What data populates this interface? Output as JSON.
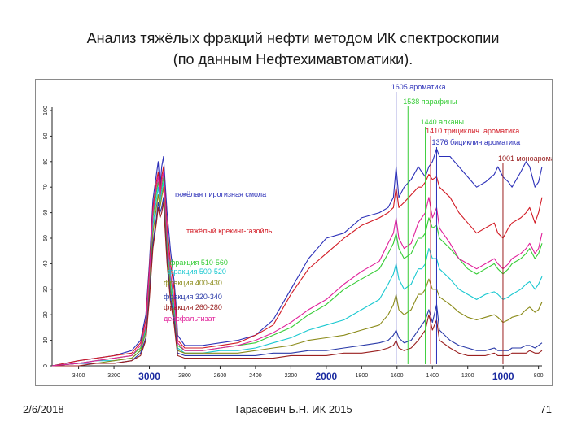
{
  "title": {
    "line1": "Анализ тяжёлых фракций нефти методом ИК спектроскопии",
    "line2": "(по данным Нефтехимавтоматики)."
  },
  "footer": {
    "date": "2/6/2018",
    "author": "Тарасевич Б.Н. ИК 2015",
    "page": "71"
  },
  "chart_data": {
    "type": "line",
    "title": "",
    "xlabel": "",
    "ylabel": "",
    "xlim": [
      3550,
      780
    ],
    "ylim": [
      0,
      100
    ],
    "grid": false,
    "x_ticks": [
      {
        "value": 3400,
        "label": "3400",
        "big": false
      },
      {
        "value": 3200,
        "label": "3200",
        "big": false
      },
      {
        "value": 3000,
        "label": "3000",
        "big": true
      },
      {
        "value": 2800,
        "label": "2800",
        "big": false
      },
      {
        "value": 2600,
        "label": "2600",
        "big": false
      },
      {
        "value": 2400,
        "label": "2400",
        "big": false
      },
      {
        "value": 2200,
        "label": "2200",
        "big": false
      },
      {
        "value": 2000,
        "label": "2000",
        "big": true
      },
      {
        "value": 1800,
        "label": "1800",
        "big": false
      },
      {
        "value": 1600,
        "label": "1600",
        "big": false
      },
      {
        "value": 1400,
        "label": "1400",
        "big": false
      },
      {
        "value": 1200,
        "label": "1200",
        "big": false
      },
      {
        "value": 1000,
        "label": "1000",
        "big": true
      },
      {
        "value": 800,
        "label": "800",
        "big": false
      }
    ],
    "y_ticks": [
      {
        "value": 0,
        "label": "0"
      },
      {
        "value": 10,
        "label": "10"
      },
      {
        "value": 20,
        "label": "20"
      },
      {
        "value": 30,
        "label": "30"
      },
      {
        "value": 40,
        "label": "40"
      },
      {
        "value": 50,
        "label": "50"
      },
      {
        "value": 60,
        "label": "60"
      },
      {
        "value": 70,
        "label": "70"
      },
      {
        "value": 80,
        "label": "80"
      },
      {
        "value": 90,
        "label": "90"
      },
      {
        "value": 100,
        "label": "100"
      }
    ],
    "series": [
      {
        "name": "тяжёлая пирогизная смола",
        "color": "#2b2fb8",
        "x": [
          3550,
          3400,
          3300,
          3200,
          3100,
          3050,
          3020,
          3000,
          2980,
          2960,
          2950,
          2940,
          2930,
          2920,
          2900,
          2880,
          2860,
          2850,
          2840,
          2800,
          2700,
          2600,
          2500,
          2400,
          2300,
          2200,
          2100,
          2000,
          1900,
          1800,
          1700,
          1650,
          1620,
          1605,
          1590,
          1560,
          1520,
          1480,
          1460,
          1440,
          1420,
          1400,
          1376,
          1360,
          1300,
          1250,
          1200,
          1150,
          1100,
          1050,
          1030,
          1001,
          970,
          950,
          900,
          870,
          850,
          820,
          800,
          780
        ],
        "y": [
          0,
          2,
          3,
          4,
          6,
          10,
          20,
          40,
          65,
          75,
          80,
          70,
          78,
          82,
          60,
          45,
          33,
          25,
          12,
          8,
          8,
          9,
          10,
          12,
          18,
          30,
          42,
          50,
          52,
          58,
          60,
          62,
          66,
          78,
          66,
          70,
          73,
          78,
          76,
          74,
          78,
          80,
          85,
          82,
          82,
          78,
          74,
          70,
          72,
          75,
          78,
          74,
          72,
          70,
          76,
          80,
          78,
          70,
          72,
          78
        ]
      },
      {
        "name": "тяжёлый крекинг-газойль",
        "color": "#d21a24",
        "x": [
          3550,
          3400,
          3300,
          3200,
          3100,
          3050,
          3020,
          3000,
          2980,
          2960,
          2950,
          2940,
          2930,
          2920,
          2900,
          2880,
          2860,
          2850,
          2840,
          2800,
          2700,
          2600,
          2500,
          2400,
          2300,
          2200,
          2100,
          2000,
          1900,
          1800,
          1700,
          1650,
          1620,
          1605,
          1590,
          1560,
          1520,
          1480,
          1460,
          1440,
          1420,
          1400,
          1376,
          1360,
          1300,
          1250,
          1200,
          1150,
          1100,
          1050,
          1030,
          1001,
          970,
          950,
          900,
          870,
          850,
          820,
          800,
          780
        ],
        "y": [
          0,
          2,
          3,
          4,
          5,
          9,
          18,
          38,
          62,
          72,
          76,
          68,
          74,
          78,
          55,
          40,
          30,
          22,
          10,
          7,
          7,
          8,
          9,
          12,
          16,
          28,
          38,
          44,
          50,
          55,
          58,
          60,
          62,
          70,
          62,
          64,
          67,
          70,
          70,
          72,
          75,
          73,
          74,
          70,
          66,
          60,
          56,
          52,
          54,
          56,
          52,
          50,
          54,
          56,
          58,
          60,
          62,
          56,
          60,
          66
        ]
      },
      {
        "name": "фракция 510-560",
        "color": "#35cc35",
        "x": [
          3550,
          3400,
          3300,
          3200,
          3100,
          3050,
          3020,
          3000,
          2980,
          2960,
          2950,
          2940,
          2930,
          2920,
          2900,
          2880,
          2860,
          2850,
          2840,
          2800,
          2700,
          2600,
          2500,
          2400,
          2300,
          2200,
          2100,
          2000,
          1900,
          1800,
          1700,
          1650,
          1620,
          1605,
          1590,
          1560,
          1520,
          1480,
          1460,
          1440,
          1420,
          1400,
          1376,
          1360,
          1300,
          1250,
          1200,
          1150,
          1100,
          1050,
          1030,
          1001,
          970,
          950,
          900,
          870,
          850,
          820,
          800,
          780
        ],
        "y": [
          0,
          1,
          2,
          3,
          4,
          7,
          15,
          35,
          58,
          68,
          72,
          66,
          70,
          74,
          50,
          35,
          24,
          18,
          8,
          6,
          6,
          7,
          8,
          9,
          12,
          15,
          20,
          24,
          30,
          34,
          38,
          44,
          48,
          52,
          46,
          42,
          44,
          50,
          50,
          52,
          58,
          54,
          55,
          50,
          46,
          42,
          38,
          36,
          38,
          40,
          38,
          36,
          38,
          40,
          42,
          44,
          46,
          42,
          44,
          48
        ]
      },
      {
        "name": "фракция 500-520",
        "color": "#18c8d0",
        "x": [
          3550,
          3400,
          3300,
          3200,
          3100,
          3050,
          3020,
          3000,
          2980,
          2960,
          2950,
          2940,
          2930,
          2920,
          2900,
          2880,
          2860,
          2850,
          2840,
          2800,
          2700,
          2600,
          2500,
          2400,
          2300,
          2200,
          2100,
          2000,
          1900,
          1800,
          1700,
          1650,
          1620,
          1605,
          1590,
          1560,
          1520,
          1480,
          1460,
          1440,
          1420,
          1400,
          1376,
          1360,
          1300,
          1250,
          1200,
          1150,
          1100,
          1050,
          1030,
          1001,
          970,
          950,
          900,
          870,
          850,
          820,
          800,
          780
        ],
        "y": [
          0,
          1,
          2,
          2,
          3,
          6,
          14,
          33,
          55,
          65,
          70,
          64,
          68,
          72,
          48,
          32,
          22,
          16,
          7,
          5,
          5,
          6,
          6,
          7,
          9,
          11,
          14,
          16,
          18,
          22,
          26,
          32,
          36,
          40,
          34,
          30,
          32,
          38,
          38,
          40,
          46,
          42,
          42,
          38,
          34,
          30,
          28,
          26,
          28,
          29,
          28,
          26,
          27,
          28,
          30,
          32,
          33,
          30,
          32,
          35
        ]
      },
      {
        "name": "фракция 400-430",
        "color": "#8a8a18",
        "x": [
          3550,
          3400,
          3300,
          3200,
          3100,
          3050,
          3020,
          3000,
          2980,
          2960,
          2950,
          2940,
          2930,
          2920,
          2900,
          2880,
          2860,
          2850,
          2840,
          2800,
          2700,
          2600,
          2500,
          2400,
          2300,
          2200,
          2100,
          2000,
          1900,
          1800,
          1700,
          1650,
          1620,
          1605,
          1590,
          1560,
          1520,
          1480,
          1460,
          1440,
          1420,
          1400,
          1376,
          1360,
          1300,
          1250,
          1200,
          1150,
          1100,
          1050,
          1030,
          1001,
          970,
          950,
          900,
          870,
          850,
          820,
          800,
          780
        ],
        "y": [
          0,
          1,
          1,
          2,
          3,
          6,
          13,
          31,
          52,
          62,
          67,
          62,
          66,
          70,
          45,
          30,
          20,
          14,
          6,
          5,
          5,
          5,
          5,
          6,
          7,
          8,
          10,
          11,
          12,
          14,
          16,
          20,
          24,
          28,
          22,
          20,
          22,
          28,
          28,
          30,
          34,
          30,
          30,
          27,
          24,
          21,
          19,
          18,
          19,
          20,
          19,
          17,
          18,
          19,
          20,
          22,
          23,
          21,
          22,
          25
        ]
      },
      {
        "name": "фракция 320-340",
        "color": "#2a3aa8",
        "x": [
          3550,
          3400,
          3300,
          3200,
          3100,
          3050,
          3020,
          3000,
          2980,
          2960,
          2950,
          2940,
          2930,
          2920,
          2900,
          2880,
          2860,
          2850,
          2840,
          2800,
          2700,
          2600,
          2500,
          2400,
          2300,
          2200,
          2100,
          2000,
          1900,
          1800,
          1700,
          1650,
          1620,
          1605,
          1590,
          1560,
          1520,
          1480,
          1460,
          1440,
          1420,
          1400,
          1376,
          1360,
          1300,
          1250,
          1200,
          1150,
          1100,
          1050,
          1030,
          1001,
          970,
          950,
          900,
          870,
          850,
          820,
          800,
          780
        ],
        "y": [
          0,
          1,
          1,
          1,
          2,
          5,
          11,
          28,
          48,
          58,
          64,
          60,
          62,
          66,
          42,
          27,
          18,
          12,
          5,
          4,
          4,
          4,
          4,
          4,
          5,
          5,
          6,
          6,
          7,
          8,
          9,
          10,
          12,
          14,
          11,
          9,
          10,
          14,
          16,
          18,
          22,
          17,
          24,
          14,
          10,
          8,
          7,
          6,
          6,
          7,
          6,
          6,
          6,
          7,
          7,
          8,
          8,
          7,
          8,
          9
        ]
      },
      {
        "name": "фракция 260-280",
        "color": "#9a2020",
        "x": [
          3550,
          3400,
          3300,
          3200,
          3100,
          3050,
          3020,
          3000,
          2980,
          2960,
          2950,
          2940,
          2930,
          2920,
          2900,
          2880,
          2860,
          2850,
          2840,
          2800,
          2700,
          2600,
          2500,
          2400,
          2300,
          2200,
          2100,
          2000,
          1900,
          1800,
          1700,
          1650,
          1620,
          1605,
          1590,
          1560,
          1520,
          1480,
          1460,
          1440,
          1420,
          1400,
          1376,
          1360,
          1300,
          1250,
          1200,
          1150,
          1100,
          1050,
          1030,
          1001,
          970,
          950,
          900,
          870,
          850,
          820,
          800,
          780
        ],
        "y": [
          0,
          0,
          1,
          1,
          2,
          4,
          10,
          26,
          46,
          56,
          62,
          58,
          60,
          64,
          40,
          25,
          16,
          10,
          4,
          3,
          3,
          3,
          3,
          3,
          3,
          4,
          4,
          4,
          5,
          5,
          6,
          7,
          8,
          10,
          7,
          6,
          7,
          10,
          12,
          14,
          20,
          14,
          18,
          10,
          7,
          5,
          4,
          4,
          4,
          5,
          4,
          4,
          4,
          5,
          5,
          5,
          6,
          5,
          5,
          6
        ]
      },
      {
        "name": "деасфальтизат",
        "color": "#e0209a",
        "x": [
          3550,
          3400,
          3300,
          3200,
          3100,
          3050,
          3020,
          3000,
          2980,
          2960,
          2950,
          2940,
          2930,
          2920,
          2900,
          2880,
          2860,
          2850,
          2840,
          2800,
          2700,
          2600,
          2500,
          2400,
          2300,
          2200,
          2100,
          2000,
          1900,
          1800,
          1700,
          1650,
          1620,
          1605,
          1590,
          1560,
          1520,
          1480,
          1460,
          1440,
          1420,
          1400,
          1376,
          1360,
          1300,
          1250,
          1200,
          1150,
          1100,
          1050,
          1030,
          1001,
          970,
          950,
          900,
          870,
          850,
          820,
          800,
          780
        ],
        "y": [
          0,
          1,
          2,
          3,
          4,
          8,
          16,
          36,
          60,
          70,
          74,
          66,
          72,
          76,
          52,
          36,
          26,
          19,
          9,
          6,
          6,
          7,
          8,
          10,
          13,
          17,
          22,
          26,
          32,
          37,
          41,
          48,
          52,
          58,
          50,
          46,
          48,
          56,
          58,
          60,
          66,
          58,
          62,
          54,
          48,
          42,
          40,
          38,
          40,
          42,
          40,
          38,
          40,
          42,
          44,
          46,
          48,
          44,
          46,
          52
        ]
      }
    ],
    "annotations": [
      {
        "text": "1605 ароматика",
        "wn": 1605,
        "color": "#2b2fb8"
      },
      {
        "text": "1538 парафины",
        "wn": 1538,
        "color": "#35cc35"
      },
      {
        "text": "1440 алканы",
        "wn": 1440,
        "color": "#35cc35"
      },
      {
        "text": "1410 трициклич. ароматика",
        "wn": 1410,
        "color": "#d21a24"
      },
      {
        "text": "1376 бициклич.ароматика",
        "wn": 1376,
        "color": "#2b2fb8"
      },
      {
        "text": "1001 моноароматика",
        "wn": 1001,
        "color": "#9a2020"
      }
    ],
    "series_labels": [
      {
        "text": "тяжёлая пирогизная смола",
        "color": "#2b2fb8"
      },
      {
        "text": "тяжёлый крекинг-газойль",
        "color": "#d21a24"
      },
      {
        "text": "фракция 510-560",
        "color": "#35cc35"
      },
      {
        "text": "фракция 500-520",
        "color": "#18c8d0"
      },
      {
        "text": "фракция 400-430",
        "color": "#8a8a18"
      },
      {
        "text": "фракция 320-340",
        "color": "#2a3aa8"
      },
      {
        "text": "фракция 260-280",
        "color": "#9a2020"
      },
      {
        "text": "деасфальтизат",
        "color": "#e0209a"
      }
    ]
  }
}
